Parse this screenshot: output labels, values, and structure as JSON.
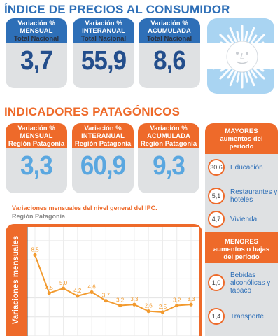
{
  "national": {
    "title": "ÍNDICE DE PRECIOS AL CONSUMIDOR",
    "cards": [
      {
        "line1": "Variación %",
        "line2": "MENSUAL",
        "line3": "Total Nacional",
        "value": "3,7"
      },
      {
        "line1": "Variación %",
        "line2": "INTERANUAL",
        "line3": "Total Nacional",
        "value": "55,9"
      },
      {
        "line1": "Variación %",
        "line2": "ACUMULADA",
        "line3": "Total Nacional",
        "value": "8,6"
      }
    ]
  },
  "patagonia": {
    "title": "INDICADORES PATAGÓNICOS",
    "cards": [
      {
        "line1": "Variación %",
        "line2": "MENSUAL",
        "line3": "Región Patagonia",
        "value": "3,3"
      },
      {
        "line1": "Variación %",
        "line2": "INTERANUAL",
        "line3": "Región Patagonia",
        "value": "60,9"
      },
      {
        "line1": "Variación %",
        "line2": "ACUMULADA",
        "line3": "Región Patagonia",
        "value": "9,3"
      }
    ]
  },
  "sidebar": {
    "mayores_header": [
      "MAYORES",
      "aumentos del",
      "período"
    ],
    "mayores": [
      {
        "value": "30,6",
        "label": [
          "Educación"
        ]
      },
      {
        "value": "5,1",
        "label": [
          "Restaurantes y",
          "hoteles"
        ]
      },
      {
        "value": "4,7",
        "label": [
          "Vivienda"
        ]
      }
    ],
    "menores_header": [
      "MENORES",
      "aumentos o bajas",
      "del período"
    ],
    "menores": [
      {
        "value": "1,0",
        "label": [
          "Bebidas",
          "alcohólicas y",
          "tabaco"
        ]
      },
      {
        "value": "1,4",
        "label": [
          "Transporte"
        ]
      }
    ]
  },
  "colors": {
    "blue": "#2e6fb7",
    "orange": "#ee6a2a",
    "light_blue": "#5aa7e0",
    "card_bg": "#dfe1e3"
  },
  "icons": {
    "sun": "sol-de-mayo-icon"
  },
  "chart_data": {
    "type": "line",
    "title": "Variaciones mensuales del nivel general del IPC.",
    "subtitle": "Región Patagonia",
    "ylabel": "Variaciones mensuales",
    "grid": true,
    "series": [
      {
        "values": [
          8.5,
          4.5,
          5.0,
          4.2,
          4.6,
          3.7,
          3.2,
          3.3,
          2.6,
          2.5,
          3.2,
          3.3
        ]
      }
    ],
    "labels": [
      "8,5",
      "4,5",
      "5,0",
      "4,2",
      "4,6",
      "3,7",
      "3,2",
      "3,3",
      "2,6",
      "2,5",
      "3,2",
      "3,3"
    ],
    "ylim": [
      0,
      10
    ]
  }
}
